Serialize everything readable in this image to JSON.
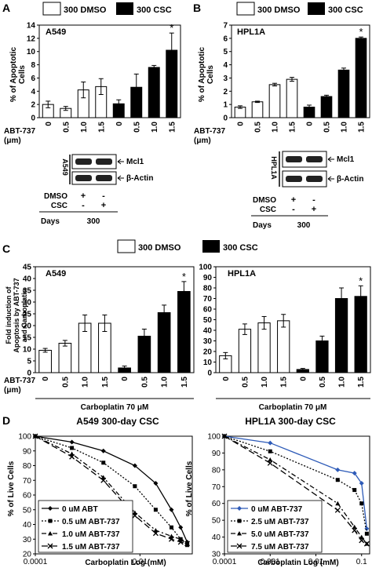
{
  "panels": {
    "A": {
      "letter": "A",
      "legend": [
        "300 DMSO",
        "300 CSC"
      ],
      "chart_title": "A549",
      "ylabel": [
        "% of Apoptotic",
        "Cells"
      ],
      "blot_cell": "A549",
      "blot_bands": [
        "Mcl1",
        "β-Actin"
      ],
      "blot_rows": [
        "DMSO",
        "CSC"
      ],
      "days_label": "Days",
      "days_value": "300"
    },
    "B": {
      "letter": "B",
      "legend": [
        "300 DMSO",
        "300 CSC"
      ],
      "chart_title": "HPL1A",
      "ylabel": [
        "% of Apoptotic",
        "Cells"
      ],
      "blot_cell": "HPL1A",
      "blot_bands": [
        "Mcl1",
        "β-Actin"
      ],
      "blot_rows": [
        "DMSO",
        "CSC"
      ],
      "days_label": "Days",
      "days_value": "300"
    },
    "C": {
      "letter": "C",
      "legend": [
        "300 DMSO",
        "300 CSC"
      ],
      "ylabel": [
        "Fold induction of",
        "Apoptosis by ABT-737",
        "and Carboplatin"
      ],
      "carbo_label": "Carboplatin 70 μM",
      "left_title": "A549",
      "right_title": "HPL1A"
    },
    "D": {
      "letter": "D",
      "left_title": "A549 300-day CSC",
      "right_title": "HPL1A 300-day CSC",
      "ylabel": "% of Live Cells",
      "xlabel": "Carboplatin Log (mM)"
    }
  },
  "shared": {
    "abt_label": [
      "ABT-737",
      "(μm)"
    ],
    "star": "*",
    "plus": "+",
    "minus": "-",
    "colors": {
      "dmso": "#ffffff",
      "csc": "#000000",
      "blue_line": "#2e5bb8"
    }
  },
  "chart_data": [
    {
      "panel": "A",
      "type": "bar",
      "title": "A549",
      "ylabel": "% of Apoptotic Cells",
      "xlabel": "ABT-737 (μm)",
      "categories": [
        "0",
        "0.5",
        "1.0",
        "1.5",
        "0",
        "0.5",
        "1.0",
        "1.5"
      ],
      "series": [
        {
          "name": "300 DMSO",
          "values": [
            2.0,
            1.4,
            4.2,
            4.7,
            null,
            null,
            null,
            null
          ],
          "errors": [
            0.5,
            0.3,
            1.2,
            1.2,
            null,
            null,
            null,
            null
          ]
        },
        {
          "name": "300 CSC",
          "values": [
            null,
            null,
            null,
            null,
            2.1,
            4.6,
            7.6,
            10.2
          ],
          "errors": [
            null,
            null,
            null,
            null,
            0.6,
            2.0,
            0.3,
            2.6
          ]
        }
      ],
      "ylim": [
        0,
        14
      ],
      "yticks": [
        "0",
        "2",
        "4",
        "6",
        "8",
        "10",
        "12",
        "14"
      ],
      "significant": [
        7
      ]
    },
    {
      "panel": "B",
      "type": "bar",
      "title": "HPL1A",
      "ylabel": "% of Apoptotic Cells",
      "xlabel": "ABT-737 (μm)",
      "categories": [
        "0",
        "0.5",
        "1.0",
        "1.5",
        "0",
        "0.5",
        "1.0",
        "1.5"
      ],
      "series": [
        {
          "name": "300 DMSO",
          "values": [
            0.8,
            1.2,
            2.5,
            2.9,
            null,
            null,
            null,
            null
          ],
          "errors": [
            0.1,
            0.05,
            0.1,
            0.15,
            null,
            null,
            null,
            null
          ]
        },
        {
          "name": "300 CSC",
          "values": [
            null,
            null,
            null,
            null,
            0.8,
            1.6,
            3.6,
            6.0
          ],
          "errors": [
            null,
            null,
            null,
            null,
            0.15,
            0.1,
            0.15,
            0.1
          ]
        }
      ],
      "ylim": [
        0,
        7
      ],
      "yticks": [
        "0",
        "1",
        "2",
        "3",
        "4",
        "5",
        "6",
        "7"
      ],
      "significant": [
        7
      ]
    },
    {
      "panel": "C-left",
      "type": "bar",
      "title": "A549",
      "ylabel": "Fold induction of Apoptosis by ABT-737 and Carboplatin",
      "xlabel": "ABT-737 (μm)",
      "categories": [
        "0",
        "0.5",
        "1.0",
        "1.5",
        "0",
        "0.5",
        "1.0",
        "1.5"
      ],
      "series": [
        {
          "name": "300 DMSO",
          "values": [
            9.5,
            12.5,
            21,
            21,
            null,
            null,
            null,
            null
          ],
          "errors": [
            0.8,
            1.2,
            3.5,
            3.5,
            null,
            null,
            null,
            null
          ]
        },
        {
          "name": "300 CSC",
          "values": [
            null,
            null,
            null,
            null,
            2,
            15.5,
            25.5,
            34.5
          ],
          "errors": [
            null,
            null,
            null,
            null,
            0.8,
            3,
            3.2,
            4.2
          ]
        }
      ],
      "ylim": [
        0,
        45
      ],
      "yticks": [
        "0",
        "5",
        "10",
        "15",
        "20",
        "25",
        "30",
        "35",
        "40",
        "45"
      ],
      "significant": [
        7
      ]
    },
    {
      "panel": "C-right",
      "type": "bar",
      "title": "HPL1A",
      "xlabel": "ABT-737 (μm)",
      "categories": [
        "0",
        "0.5",
        "1.0",
        "1.5",
        "0",
        "0.5",
        "1.0",
        "1.5"
      ],
      "series": [
        {
          "name": "300 DMSO",
          "values": [
            16,
            41,
            47,
            49,
            null,
            null,
            null,
            null
          ],
          "errors": [
            3,
            5,
            6,
            6,
            null,
            null,
            null,
            null
          ]
        },
        {
          "name": "300 CSC",
          "values": [
            null,
            null,
            null,
            null,
            3,
            30,
            70,
            72
          ],
          "errors": [
            null,
            null,
            null,
            null,
            1,
            4.5,
            10,
            10
          ]
        }
      ],
      "ylim": [
        0,
        100
      ],
      "yticks": [
        "0",
        "10",
        "20",
        "30",
        "40",
        "50",
        "60",
        "70",
        "80",
        "90",
        "100"
      ],
      "significant": [
        7
      ]
    },
    {
      "panel": "D-left",
      "type": "line",
      "title": "A549 300-day CSC",
      "xlabel": "Carboplatin Log (mM)",
      "ylabel": "% of Live Cells",
      "x_scale": "log",
      "xlim": [
        0.0001,
        0.1
      ],
      "xticks": [
        "0.0001",
        "0.01"
      ],
      "ylim": [
        20,
        100
      ],
      "yticks": [
        "20",
        "30",
        "40",
        "50",
        "60",
        "70",
        "80",
        "90",
        "100"
      ],
      "legend_position": "bottom-left",
      "series": [
        {
          "name": "0 uM ABT",
          "x": [
            0.0001,
            0.0005,
            0.002,
            0.008,
            0.02,
            0.04,
            0.06,
            0.08
          ],
          "y": [
            100,
            96,
            90,
            80,
            68,
            50,
            38,
            28
          ]
        },
        {
          "name": "0.5 uM ABT-737",
          "x": [
            0.0001,
            0.0005,
            0.002,
            0.008,
            0.02,
            0.04,
            0.06,
            0.08
          ],
          "y": [
            100,
            92,
            82,
            66,
            50,
            38,
            30,
            26
          ]
        },
        {
          "name": "1.0 uM ABT-737",
          "x": [
            0.0001,
            0.0005,
            0.002,
            0.008,
            0.02,
            0.04,
            0.06,
            0.08
          ],
          "y": [
            100,
            88,
            72,
            48,
            36,
            32,
            30,
            28
          ]
        },
        {
          "name": "1.5 uM ABT-737",
          "x": [
            0.0001,
            0.0005,
            0.002,
            0.008,
            0.02,
            0.04,
            0.06,
            0.08
          ],
          "y": [
            100,
            86,
            70,
            46,
            34,
            30,
            28,
            27
          ]
        }
      ]
    },
    {
      "panel": "D-right",
      "type": "line",
      "title": "HPL1A 300-day CSC",
      "xlabel": "Carboplatin Log (mM)",
      "ylabel": "% of Live Cells",
      "x_scale": "log",
      "xlim": [
        0.0001,
        0.15
      ],
      "xticks": [
        "0.0001",
        "0.001",
        "0.01",
        "0.1"
      ],
      "ylim": [
        30,
        100
      ],
      "yticks": [
        "30",
        "40",
        "50",
        "60",
        "70",
        "80",
        "90",
        "100"
      ],
      "legend_position": "bottom-left",
      "series": [
        {
          "name": "0 uM ABT-737",
          "x": [
            0.0001,
            0.001,
            0.03,
            0.07,
            0.1,
            0.13
          ],
          "y": [
            100,
            96,
            80,
            78,
            72,
            45
          ]
        },
        {
          "name": "2.5 uM ABT-737",
          "x": [
            0.0001,
            0.001,
            0.03,
            0.07,
            0.1,
            0.13
          ],
          "y": [
            100,
            91,
            74,
            68,
            60,
            42
          ]
        },
        {
          "name": "5.0 uM ABT-737",
          "x": [
            0.0001,
            0.001,
            0.03,
            0.07,
            0.1,
            0.13
          ],
          "y": [
            100,
            86,
            60,
            46,
            40,
            36
          ]
        },
        {
          "name": "7.5 uM ABT-737",
          "x": [
            0.0001,
            0.001,
            0.03,
            0.07,
            0.1,
            0.13
          ],
          "y": [
            100,
            84,
            56,
            44,
            38,
            36
          ]
        }
      ]
    }
  ]
}
